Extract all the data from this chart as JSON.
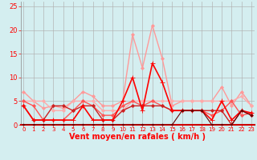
{
  "x": [
    0,
    1,
    2,
    3,
    4,
    5,
    6,
    7,
    8,
    9,
    10,
    11,
    12,
    13,
    14,
    15,
    16,
    17,
    18,
    19,
    20,
    21,
    22,
    23
  ],
  "series": [
    {
      "color": "#ff9999",
      "linewidth": 1.0,
      "marker": "D",
      "markersize": 2.0,
      "y": [
        7,
        5,
        3.5,
        4,
        3.5,
        5,
        7,
        6,
        4,
        4,
        5,
        19,
        12,
        21,
        14,
        4,
        5,
        5,
        5,
        5,
        8,
        4,
        7,
        4
      ]
    },
    {
      "color": "#ffaaaa",
      "linewidth": 1.0,
      "marker": "D",
      "markersize": 2.0,
      "y": [
        5,
        5,
        5,
        3,
        3,
        5,
        5,
        5,
        3,
        3,
        3,
        5,
        5,
        5,
        5,
        5,
        5,
        5,
        5,
        5,
        5,
        5,
        6,
        4
      ]
    },
    {
      "color": "#ff5555",
      "linewidth": 1.0,
      "marker": "D",
      "markersize": 2.0,
      "y": [
        5,
        4,
        1,
        1,
        1,
        3,
        5,
        4,
        2,
        2,
        4,
        5,
        4,
        5,
        4,
        3,
        3,
        3,
        3,
        2,
        3,
        5,
        2,
        2.5
      ]
    },
    {
      "color": "#cc2222",
      "linewidth": 1.0,
      "marker": "D",
      "markersize": 2.0,
      "y": [
        4,
        1,
        1,
        4,
        4,
        3,
        4,
        4,
        1,
        1,
        3,
        4,
        4,
        4,
        4,
        3,
        3,
        3,
        3,
        3,
        3,
        0,
        3,
        2
      ]
    },
    {
      "color": "#ff0000",
      "linewidth": 1.2,
      "marker": "+",
      "markersize": 4,
      "y": [
        4,
        1,
        1,
        1,
        1,
        1,
        4,
        1,
        1,
        1,
        5,
        10,
        3,
        13,
        9,
        3,
        3,
        3,
        3,
        1,
        5,
        1,
        3,
        2.5
      ]
    },
    {
      "color": "#660000",
      "linewidth": 0.8,
      "marker": "D",
      "markersize": 1.5,
      "y": [
        0,
        0,
        0,
        0,
        0,
        0,
        0,
        0,
        0,
        0,
        0,
        0,
        0,
        0,
        0,
        0,
        3,
        3,
        3,
        0,
        0,
        0,
        3,
        2
      ]
    }
  ],
  "xlim": [
    -0.3,
    23.3
  ],
  "ylim": [
    0,
    26
  ],
  "yticks": [
    0,
    5,
    10,
    15,
    20,
    25
  ],
  "xticks": [
    0,
    1,
    2,
    3,
    4,
    5,
    6,
    7,
    8,
    9,
    10,
    11,
    12,
    13,
    14,
    15,
    16,
    17,
    18,
    19,
    20,
    21,
    22,
    23
  ],
  "xlabel": "Vent moyen/en rafales ( km/h )",
  "bg_color": "#d4eef0",
  "grid_color": "#b0b0b0",
  "tick_color": "#ff0000",
  "label_color": "#ff0000",
  "xlabel_fontsize": 7,
  "ytick_fontsize": 6,
  "xtick_fontsize": 5
}
